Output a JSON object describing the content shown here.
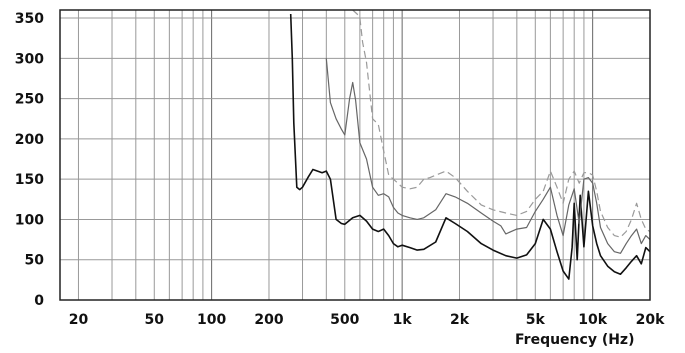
{
  "chart_data": {
    "type": "line",
    "title": "",
    "xlabel": "Frequency (Hz)",
    "ylabel": "",
    "xscale": "log",
    "xlim": [
      16,
      20000
    ],
    "ylim": [
      0,
      360
    ],
    "grid": true,
    "legend": "none",
    "x_ticks": [
      {
        "value": 20,
        "label": "20"
      },
      {
        "value": 50,
        "label": "50"
      },
      {
        "value": 100,
        "label": "100"
      },
      {
        "value": 200,
        "label": "200"
      },
      {
        "value": 500,
        "label": "500"
      },
      {
        "value": 1000,
        "label": "1k"
      },
      {
        "value": 2000,
        "label": "2k"
      },
      {
        "value": 5000,
        "label": "5k"
      },
      {
        "value": 10000,
        "label": "10k"
      },
      {
        "value": 20000,
        "label": "20k"
      }
    ],
    "y_ticks": [
      0,
      50,
      100,
      150,
      200,
      250,
      300,
      350
    ],
    "series": [
      {
        "color": "#111111",
        "width": 1.6,
        "dash": "",
        "points": [
          [
            260,
            355
          ],
          [
            265,
            300
          ],
          [
            270,
            220
          ],
          [
            280,
            140
          ],
          [
            290,
            137
          ],
          [
            300,
            140
          ],
          [
            320,
            152
          ],
          [
            340,
            162
          ],
          [
            360,
            160
          ],
          [
            380,
            158
          ],
          [
            400,
            160
          ],
          [
            420,
            150
          ],
          [
            450,
            100
          ],
          [
            480,
            95
          ],
          [
            500,
            94
          ],
          [
            550,
            102
          ],
          [
            600,
            105
          ],
          [
            650,
            98
          ],
          [
            700,
            88
          ],
          [
            750,
            85
          ],
          [
            800,
            88
          ],
          [
            850,
            80
          ],
          [
            900,
            70
          ],
          [
            950,
            66
          ],
          [
            1000,
            68
          ],
          [
            1100,
            65
          ],
          [
            1200,
            62
          ],
          [
            1300,
            63
          ],
          [
            1500,
            72
          ],
          [
            1700,
            102
          ],
          [
            1900,
            95
          ],
          [
            2200,
            85
          ],
          [
            2600,
            70
          ],
          [
            3000,
            62
          ],
          [
            3500,
            55
          ],
          [
            4000,
            52
          ],
          [
            4500,
            56
          ],
          [
            5000,
            70
          ],
          [
            5500,
            100
          ],
          [
            6000,
            88
          ],
          [
            6500,
            60
          ],
          [
            7000,
            36
          ],
          [
            7500,
            26
          ],
          [
            7800,
            65
          ],
          [
            8000,
            120
          ],
          [
            8300,
            50
          ],
          [
            8600,
            130
          ],
          [
            9000,
            66
          ],
          [
            9500,
            135
          ],
          [
            10000,
            92
          ],
          [
            10500,
            70
          ],
          [
            11000,
            55
          ],
          [
            12000,
            42
          ],
          [
            13000,
            35
          ],
          [
            14000,
            32
          ],
          [
            15000,
            40
          ],
          [
            16000,
            48
          ],
          [
            17000,
            55
          ],
          [
            18000,
            45
          ],
          [
            19000,
            65
          ],
          [
            20000,
            60
          ]
        ]
      },
      {
        "color": "#666666",
        "width": 1.2,
        "dash": "",
        "points": [
          [
            400,
            300
          ],
          [
            420,
            245
          ],
          [
            450,
            225
          ],
          [
            480,
            212
          ],
          [
            500,
            205
          ],
          [
            530,
            250
          ],
          [
            550,
            270
          ],
          [
            570,
            248
          ],
          [
            600,
            195
          ],
          [
            650,
            175
          ],
          [
            700,
            140
          ],
          [
            750,
            130
          ],
          [
            800,
            132
          ],
          [
            850,
            128
          ],
          [
            900,
            115
          ],
          [
            950,
            108
          ],
          [
            1000,
            105
          ],
          [
            1100,
            102
          ],
          [
            1200,
            100
          ],
          [
            1300,
            102
          ],
          [
            1500,
            112
          ],
          [
            1700,
            132
          ],
          [
            1900,
            128
          ],
          [
            2200,
            120
          ],
          [
            2600,
            108
          ],
          [
            3000,
            98
          ],
          [
            3300,
            92
          ],
          [
            3500,
            82
          ],
          [
            4000,
            88
          ],
          [
            4500,
            90
          ],
          [
            5000,
            110
          ],
          [
            5500,
            125
          ],
          [
            6000,
            140
          ],
          [
            6500,
            105
          ],
          [
            7000,
            80
          ],
          [
            7500,
            118
          ],
          [
            8000,
            138
          ],
          [
            8500,
            95
          ],
          [
            9000,
            150
          ],
          [
            9500,
            152
          ],
          [
            10000,
            145
          ],
          [
            10500,
            120
          ],
          [
            11000,
            90
          ],
          [
            12000,
            70
          ],
          [
            13000,
            60
          ],
          [
            14000,
            58
          ],
          [
            15000,
            70
          ],
          [
            16000,
            80
          ],
          [
            17000,
            88
          ],
          [
            18000,
            70
          ],
          [
            19000,
            80
          ],
          [
            20000,
            75
          ]
        ]
      },
      {
        "color": "#9a9a9a",
        "width": 1.2,
        "dash": "7 4",
        "points": [
          [
            550,
            360
          ],
          [
            580,
            355
          ],
          [
            600,
            350
          ],
          [
            620,
            320
          ],
          [
            650,
            295
          ],
          [
            700,
            225
          ],
          [
            750,
            218
          ],
          [
            800,
            185
          ],
          [
            850,
            155
          ],
          [
            900,
            150
          ],
          [
            950,
            145
          ],
          [
            1000,
            140
          ],
          [
            1100,
            138
          ],
          [
            1200,
            140
          ],
          [
            1300,
            150
          ],
          [
            1400,
            152
          ],
          [
            1500,
            155
          ],
          [
            1700,
            160
          ],
          [
            1900,
            152
          ],
          [
            2200,
            135
          ],
          [
            2600,
            118
          ],
          [
            3000,
            112
          ],
          [
            3500,
            108
          ],
          [
            4000,
            105
          ],
          [
            4500,
            110
          ],
          [
            5000,
            125
          ],
          [
            5500,
            135
          ],
          [
            6000,
            160
          ],
          [
            6500,
            140
          ],
          [
            7000,
            120
          ],
          [
            7500,
            150
          ],
          [
            8000,
            160
          ],
          [
            8500,
            145
          ],
          [
            9000,
            158
          ],
          [
            9500,
            158
          ],
          [
            10000,
            155
          ],
          [
            10500,
            135
          ],
          [
            11000,
            110
          ],
          [
            12000,
            90
          ],
          [
            13000,
            80
          ],
          [
            14000,
            78
          ],
          [
            15000,
            85
          ],
          [
            16000,
            100
          ],
          [
            17000,
            120
          ],
          [
            18000,
            100
          ],
          [
            19000,
            88
          ],
          [
            20000,
            85
          ]
        ]
      }
    ]
  }
}
